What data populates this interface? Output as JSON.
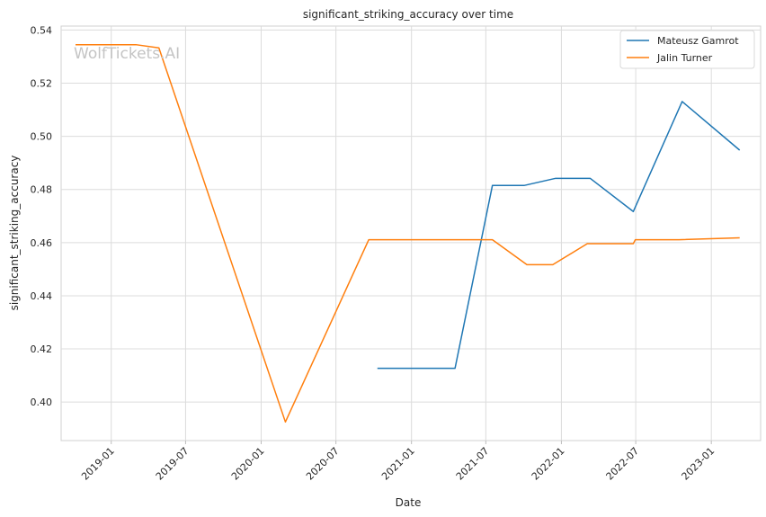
{
  "chart_data": {
    "type": "line",
    "title": "significant_striking_accuracy over time",
    "xlabel": "Date",
    "ylabel": "significant_striking_accuracy",
    "x_ticks": [
      "2019-01",
      "2019-07",
      "2020-01",
      "2020-07",
      "2021-01",
      "2021-07",
      "2022-01",
      "2022-07",
      "2023-01"
    ],
    "y_ticks": [
      "0.40",
      "0.42",
      "0.44",
      "0.46",
      "0.48",
      "0.50",
      "0.52",
      "0.54"
    ],
    "ylim": [
      0.3855,
      0.5415
    ],
    "xlim": [
      "2018-09-01",
      "2023-05-01"
    ],
    "grid": true,
    "legend_position": "top-right",
    "watermark": "WolfTickets.AI",
    "series": [
      {
        "name": "Mateusz Gamrot",
        "color": "#1f77b4",
        "points": [
          {
            "x": "2020-10-10",
            "y": 0.4127
          },
          {
            "x": "2021-04-17",
            "y": 0.4127
          },
          {
            "x": "2021-07-17",
            "y": 0.4815
          },
          {
            "x": "2021-10-02",
            "y": 0.4815
          },
          {
            "x": "2021-12-18",
            "y": 0.4842
          },
          {
            "x": "2022-03-12",
            "y": 0.4842
          },
          {
            "x": "2022-06-25",
            "y": 0.4717
          },
          {
            "x": "2022-10-22",
            "y": 0.5131
          },
          {
            "x": "2023-03-11",
            "y": 0.4948
          }
        ]
      },
      {
        "name": "Jalin Turner",
        "color": "#ff7f0e",
        "points": [
          {
            "x": "2018-10-06",
            "y": 0.5345
          },
          {
            "x": "2019-03-02",
            "y": 0.5345
          },
          {
            "x": "2019-04-27",
            "y": 0.5333
          },
          {
            "x": "2020-02-29",
            "y": 0.3925
          },
          {
            "x": "2020-09-19",
            "y": 0.4611
          },
          {
            "x": "2021-07-17",
            "y": 0.4611
          },
          {
            "x": "2021-10-09",
            "y": 0.4517
          },
          {
            "x": "2021-12-11",
            "y": 0.4517
          },
          {
            "x": "2022-03-05",
            "y": 0.4596
          },
          {
            "x": "2022-06-25",
            "y": 0.4596
          },
          {
            "x": "2022-06-30",
            "y": 0.4611
          },
          {
            "x": "2022-10-15",
            "y": 0.4611
          },
          {
            "x": "2023-03-11",
            "y": 0.4618
          }
        ]
      }
    ]
  }
}
